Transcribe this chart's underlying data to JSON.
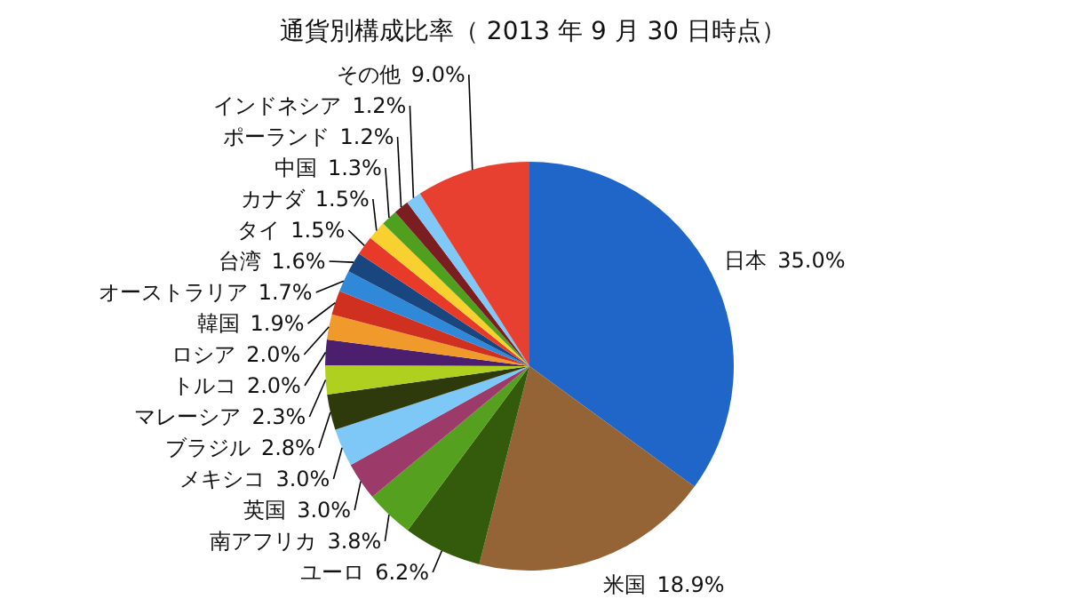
{
  "chart_data": {
    "type": "pie",
    "title": "通貨別構成比率（ 2013 年 9 月 30 日時点）",
    "categories": [
      "日本",
      "米国",
      "ユーロ",
      "南アフリカ",
      "英国",
      "メキシコ",
      "ブラジル",
      "マレーシア",
      "トルコ",
      "ロシア",
      "韓国",
      "オーストラリア",
      "台湾",
      "タイ",
      "カナダ",
      "中国",
      "ポーランド",
      "インドネシア",
      "その他"
    ],
    "values": [
      35.0,
      18.9,
      6.2,
      3.8,
      3.0,
      3.0,
      2.8,
      2.3,
      2.0,
      2.0,
      1.9,
      1.7,
      1.6,
      1.5,
      1.5,
      1.3,
      1.2,
      1.2,
      9.0
    ],
    "colors": [
      "#1f66c8",
      "#956436",
      "#345b0b",
      "#56a020",
      "#9c3a6a",
      "#7ec8f8",
      "#2f3a0c",
      "#b0d020",
      "#4b1f6e",
      "#f09a2c",
      "#d03020",
      "#2f88d8",
      "#1a4680",
      "#e83a28",
      "#f8d030",
      "#50a020",
      "#7a1e22",
      "#80c8f8",
      "#e84030"
    ],
    "value_labels": [
      "35.0%",
      "18.9%",
      "6.2%",
      "3.8%",
      "3.0%",
      "3.0%",
      "2.8%",
      "2.3%",
      "2.0%",
      "2.0%",
      "1.9%",
      "1.7%",
      "1.6%",
      "1.5%",
      "1.5%",
      "1.3%",
      "1.2%",
      "1.2%",
      "9.0%"
    ]
  }
}
